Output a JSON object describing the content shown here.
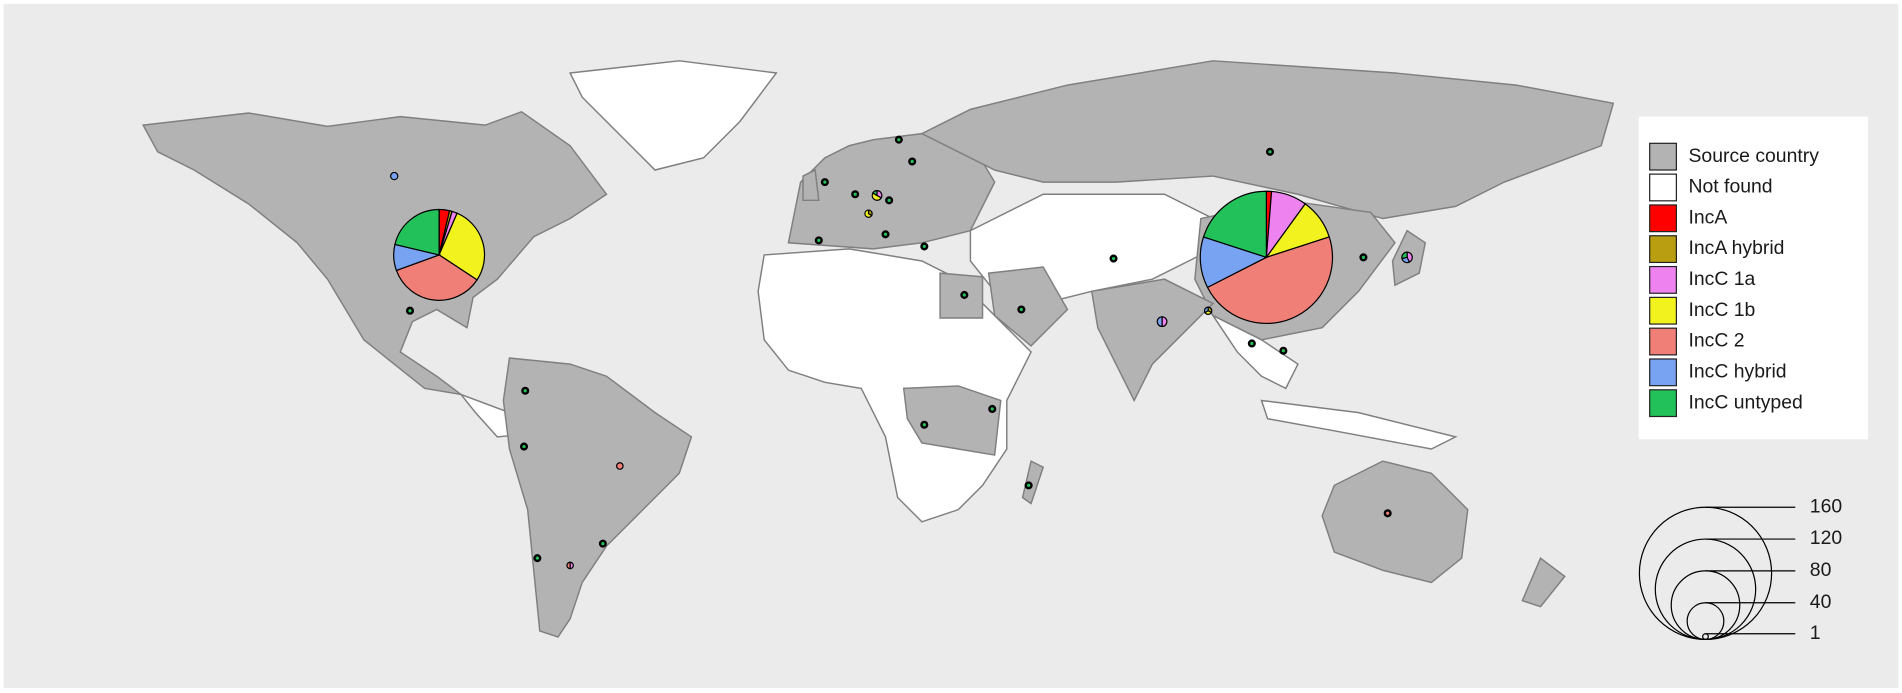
{
  "map": {
    "legend": {
      "items": [
        {
          "label": "Source country",
          "color": "#b3b3b3"
        },
        {
          "label": "Not found",
          "color": "#ffffff"
        },
        {
          "label": "IncA",
          "color": "#ff0000"
        },
        {
          "label": "IncA hybrid",
          "color": "#b89e10"
        },
        {
          "label": "IncC 1a",
          "color": "#ee82ee"
        },
        {
          "label": "IncC 1b",
          "color": "#f2f21e"
        },
        {
          "label": "IncC 2",
          "color": "#f08077"
        },
        {
          "label": "IncC hybrid",
          "color": "#78a3f2"
        },
        {
          "label": "IncC untyped",
          "color": "#22c15a"
        }
      ]
    },
    "size_legend": {
      "values": [
        160,
        120,
        80,
        40,
        1
      ]
    },
    "pies": [
      {
        "counts": [
          2,
          0,
          14,
          16,
          76,
          20,
          32
        ]
      },
      {
        "counts": [
          4,
          1,
          2,
          30,
          38,
          10,
          23
        ]
      },
      {
        "counts": [
          0,
          0,
          0,
          0,
          0,
          3,
          0
        ]
      },
      {
        "counts": [
          0,
          0,
          2,
          3,
          0,
          0,
          1
        ]
      },
      {
        "counts": [
          0,
          1,
          0,
          2,
          0,
          0,
          0
        ]
      },
      {
        "counts": [
          0,
          0,
          3,
          0,
          0,
          3,
          0
        ]
      },
      {
        "counts": [
          0,
          1,
          0,
          1,
          0,
          1,
          0
        ]
      },
      {
        "counts": [
          0,
          0,
          3,
          0,
          0,
          2,
          2
        ]
      },
      {
        "counts": [
          0,
          0,
          0,
          0,
          2,
          0,
          0
        ]
      },
      {
        "counts": [
          0,
          0,
          1,
          0,
          1,
          0,
          0
        ]
      },
      {
        "counts": [
          0,
          0,
          0,
          0,
          1,
          0,
          0
        ]
      },
      {
        "counts": [
          0,
          0,
          0,
          0,
          0,
          0,
          1
        ]
      },
      {
        "counts": [
          0,
          0,
          0,
          0,
          0,
          0,
          1
        ]
      },
      {
        "counts": [
          0,
          0,
          0,
          0,
          0,
          0,
          1
        ]
      },
      {
        "counts": [
          0,
          0,
          0,
          0,
          0,
          0,
          1
        ]
      },
      {
        "counts": [
          0,
          0,
          0,
          0,
          0,
          0,
          1
        ]
      },
      {
        "counts": [
          0,
          0,
          0,
          0,
          0,
          0,
          1
        ]
      },
      {
        "counts": [
          0,
          0,
          0,
          0,
          0,
          0,
          1
        ]
      },
      {
        "counts": [
          0,
          0,
          0,
          0,
          0,
          0,
          1
        ]
      },
      {
        "counts": [
          0,
          0,
          0,
          0,
          0,
          0,
          1
        ]
      },
      {
        "counts": [
          0,
          0,
          0,
          0,
          0,
          0,
          1
        ]
      },
      {
        "counts": [
          0,
          0,
          0,
          0,
          0,
          0,
          1
        ]
      },
      {
        "counts": [
          0,
          0,
          0,
          0,
          0,
          0,
          1
        ]
      },
      {
        "counts": [
          0,
          0,
          0,
          0,
          0,
          0,
          1
        ]
      },
      {
        "counts": [
          0,
          0,
          0,
          0,
          0,
          0,
          1
        ]
      },
      {
        "counts": [
          0,
          0,
          0,
          0,
          0,
          0,
          1
        ]
      },
      {
        "counts": [
          0,
          0,
          0,
          0,
          0,
          0,
          1
        ]
      },
      {
        "counts": [
          0,
          0,
          0,
          0,
          0,
          0,
          1
        ]
      },
      {
        "counts": [
          0,
          0,
          0,
          0,
          0,
          0,
          1
        ]
      },
      {
        "counts": [
          0,
          0,
          0,
          0,
          0,
          0,
          1
        ]
      },
      {
        "counts": [
          0,
          0,
          0,
          0,
          0,
          0,
          1
        ]
      },
      {
        "counts": [
          0,
          0,
          0,
          0,
          0,
          0,
          1
        ]
      },
      {
        "counts": [
          0,
          0,
          0,
          0,
          0,
          0,
          1
        ]
      },
      {
        "counts": [
          0,
          0,
          0,
          0,
          0,
          0,
          1
        ]
      }
    ]
  }
}
